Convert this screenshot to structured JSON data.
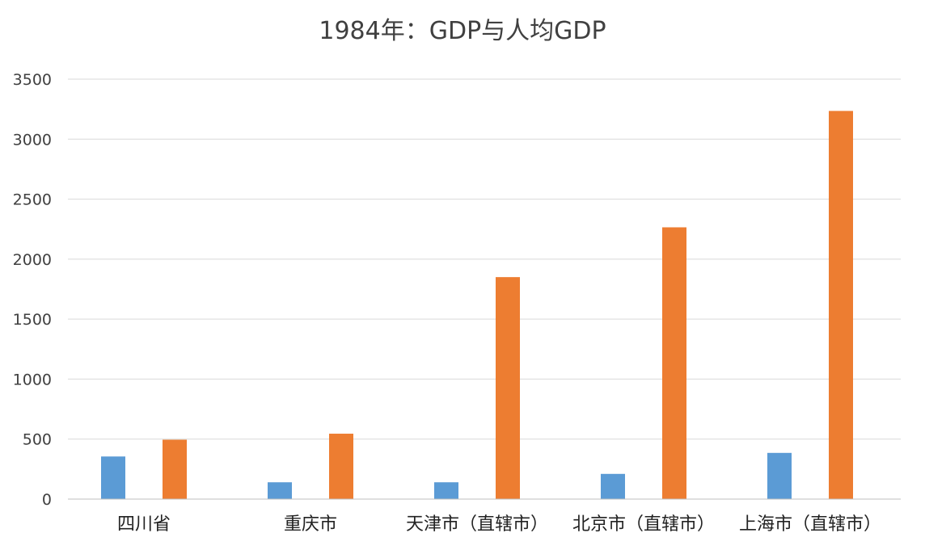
{
  "chart_data": {
    "type": "bar",
    "title": "1984年：GDP与人均GDP",
    "xlabel": "",
    "ylabel": "",
    "ylim": [
      0,
      3500
    ],
    "yticks": [
      0,
      500,
      1000,
      1500,
      2000,
      2500,
      3000,
      3500
    ],
    "grid": true,
    "legend": "none",
    "categories": [
      "四川省",
      "重庆市",
      "天津市（直辖市）",
      "北京市（直辖市）",
      "上海市（直辖市）"
    ],
    "series": [
      {
        "values": [
          355,
          140,
          140,
          210,
          385
        ],
        "color": "#5b9bd5"
      },
      {
        "values": [
          495,
          545,
          1850,
          2265,
          3235
        ],
        "color": "#ed7d31"
      }
    ]
  }
}
